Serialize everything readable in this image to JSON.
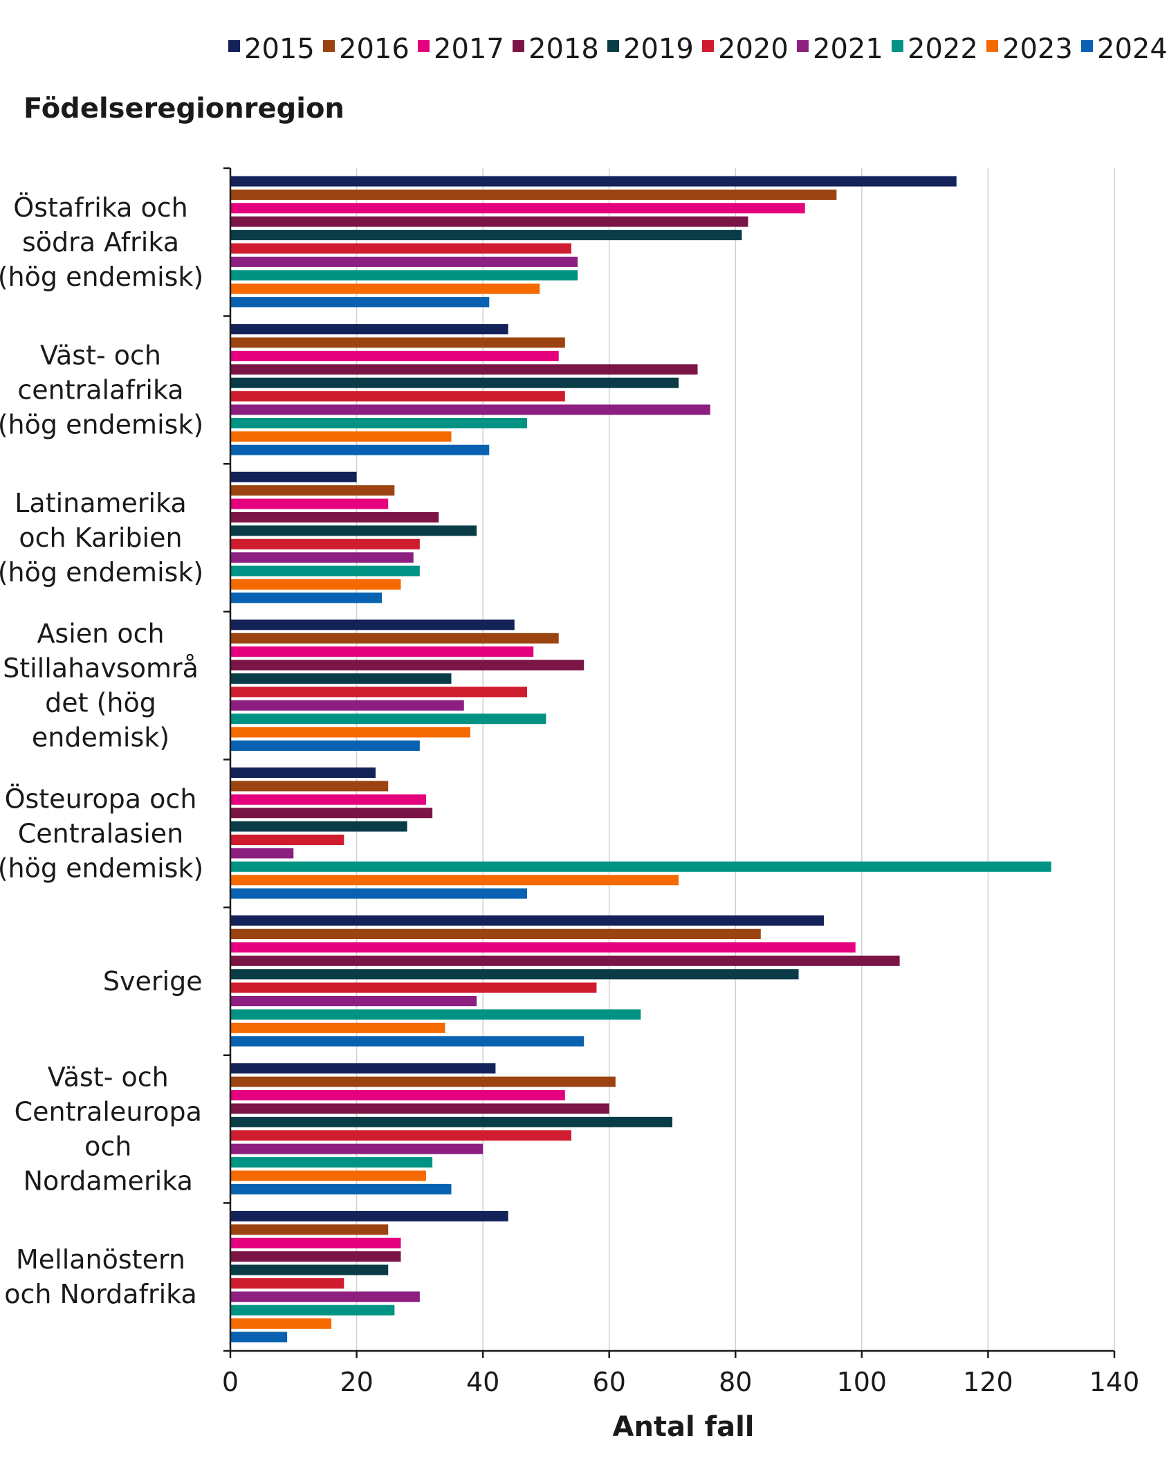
{
  "chart_data": {
    "type": "bar",
    "orientation": "horizontal",
    "title": "",
    "category_axis_title": "Födelseregionregion",
    "xlabel": "Antal fall",
    "xlim": [
      0,
      140
    ],
    "xticks": [
      0,
      20,
      40,
      60,
      80,
      100,
      120,
      140
    ],
    "grid": true,
    "legend_position": "top",
    "categories": [
      [
        "Östafrika och",
        "södra Afrika",
        "(hög endemisk)"
      ],
      [
        "Väst- och",
        "centralafrika",
        "(hög endemisk)"
      ],
      [
        "Latinamerika",
        "och Karibien",
        "(hög endemisk)"
      ],
      [
        "Asien och",
        "Stillahavsområ",
        "det (hög",
        "endemisk)"
      ],
      [
        "Östeuropa och",
        "Centralasien",
        "(hög endemisk)"
      ],
      [
        "Sverige"
      ],
      [
        "Väst- och",
        "Centraleuropa",
        "och",
        "Nordamerika"
      ],
      [
        "Mellanöstern",
        "och Nordafrika"
      ]
    ],
    "series": [
      {
        "name": "2015",
        "color": "#14225a",
        "values": [
          115,
          44,
          20,
          45,
          23,
          94,
          42,
          44
        ]
      },
      {
        "name": "2016",
        "color": "#9c4411",
        "values": [
          96,
          53,
          26,
          52,
          25,
          84,
          61,
          25
        ]
      },
      {
        "name": "2017",
        "color": "#e5007d",
        "values": [
          91,
          52,
          25,
          48,
          31,
          99,
          53,
          27
        ]
      },
      {
        "name": "2018",
        "color": "#7b1546",
        "values": [
          82,
          74,
          33,
          56,
          32,
          106,
          60,
          27
        ]
      },
      {
        "name": "2019",
        "color": "#0a3c47",
        "values": [
          81,
          71,
          39,
          35,
          28,
          90,
          70,
          25
        ]
      },
      {
        "name": "2020",
        "color": "#cf1c2e",
        "values": [
          54,
          53,
          30,
          47,
          18,
          58,
          54,
          18
        ]
      },
      {
        "name": "2021",
        "color": "#8c1f80",
        "values": [
          55,
          76,
          29,
          37,
          10,
          39,
          40,
          30
        ]
      },
      {
        "name": "2022",
        "color": "#009383",
        "values": [
          55,
          47,
          30,
          50,
          130,
          65,
          32,
          26
        ]
      },
      {
        "name": "2023",
        "color": "#f56a00",
        "values": [
          49,
          35,
          27,
          38,
          71,
          34,
          31,
          16
        ]
      },
      {
        "name": "2024",
        "color": "#0862b1",
        "values": [
          41,
          41,
          24,
          30,
          47,
          56,
          35,
          9
        ]
      }
    ]
  }
}
